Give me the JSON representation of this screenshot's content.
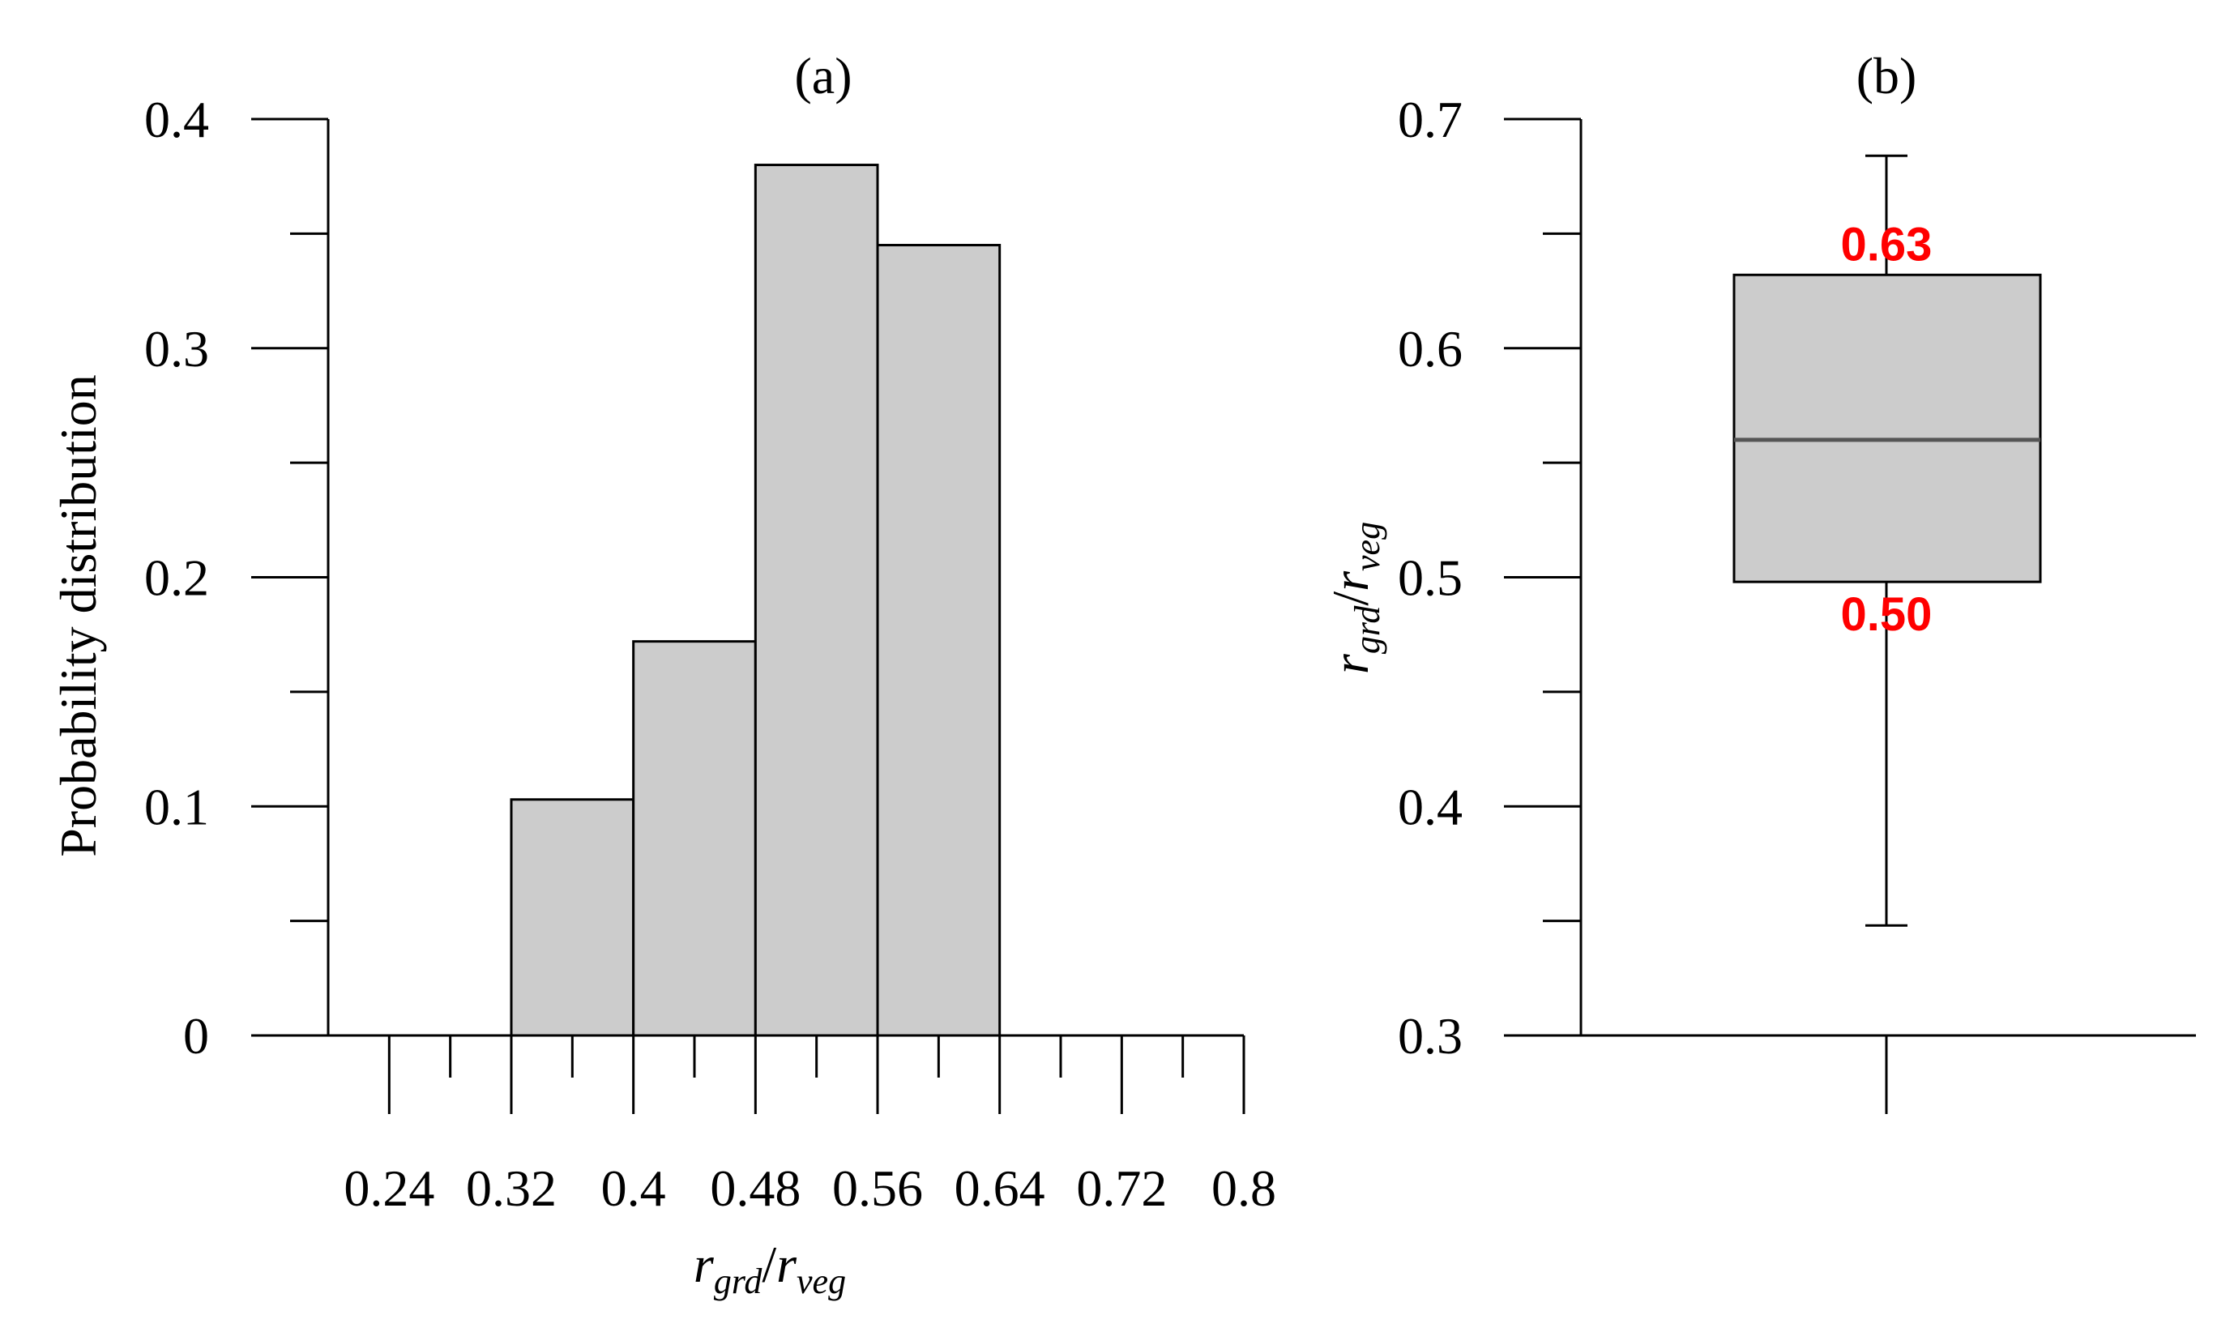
{
  "chart_data": [
    {
      "panel": "(a)",
      "type": "bar",
      "subtype": "histogram",
      "title": "(a)",
      "xlabel": {
        "main": "r",
        "sub1": "grd",
        "slash": "/",
        "main2": "r",
        "sub2": "veg"
      },
      "ylabel": "Probability distribution",
      "bins": [
        {
          "x0": 0.32,
          "x1": 0.4,
          "value": 0.103
        },
        {
          "x0": 0.4,
          "x1": 0.48,
          "value": 0.172
        },
        {
          "x0": 0.48,
          "x1": 0.56,
          "value": 0.38
        },
        {
          "x0": 0.56,
          "x1": 0.64,
          "value": 0.345
        }
      ],
      "xlim": [
        0.2,
        0.8
      ],
      "ylim": [
        0,
        0.4
      ],
      "xticks_major": [
        "0.24",
        "0.32",
        "0.4",
        "0.48",
        "0.56",
        "0.64",
        "0.72",
        "0.8"
      ],
      "xticks_minor": [
        0.28,
        0.36,
        0.44,
        0.52,
        0.6,
        0.68,
        0.76
      ],
      "yticks": [
        "0",
        "0.1",
        "0.2",
        "0.3",
        "0.4"
      ],
      "yticks_minor": [
        0.05,
        0.15,
        0.25,
        0.35
      ],
      "bar_color": "#cccccc",
      "grid": false
    },
    {
      "panel": "(b)",
      "type": "box",
      "title": "(b)",
      "ylabel": {
        "main": "r",
        "sub1": "grd",
        "slash": "/",
        "main2": "r",
        "sub2": "veg"
      },
      "ylim": [
        0.3,
        0.7
      ],
      "yticks": [
        "0.3",
        "0.4",
        "0.5",
        "0.6",
        "0.7"
      ],
      "yticks_minor": [
        0.35,
        0.45,
        0.55,
        0.65
      ],
      "box": {
        "whisker_low": 0.348,
        "q1": 0.498,
        "median": 0.56,
        "q3": 0.632,
        "whisker_high": 0.684
      },
      "annotations": {
        "q3_label": "0.63",
        "q1_label": "0.50"
      },
      "annotation_color": "#ff0000",
      "box_color": "#cccccc",
      "grid": false
    }
  ]
}
